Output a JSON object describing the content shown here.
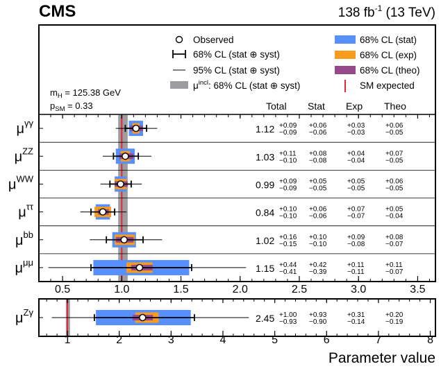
{
  "header": {
    "experiment": "CMS",
    "luminosity": "138 fb",
    "lumi_exponent": "-1",
    "energy": "(13 TeV)"
  },
  "legend": {
    "observed": "Observed",
    "ci68_total": "68% CL (stat ⊕ syst)",
    "ci95_total": "95% CL (stat ⊕ syst)",
    "incl_prefix": "μ",
    "incl_sup": "incl",
    "incl_suffix": ": 68% CL (stat ⊕ syst)",
    "stat": "68% CL (stat)",
    "exp": "68% CL (exp)",
    "theo": "68% CL (theo)",
    "sm": "SM expected"
  },
  "params": {
    "mh": "m",
    "mh_sub": "H",
    "mh_val": " = 125.38 GeV",
    "psm": "p",
    "psm_sub": "SM",
    "psm_val": " = 0.33"
  },
  "columns": {
    "total": "Total",
    "stat": "Stat",
    "exp": "Exp",
    "theo": "Theo"
  },
  "colors": {
    "stat": "#5790fc",
    "exp": "#f89c20",
    "theo": "#964a8b",
    "incl": "#9c9ca1",
    "sm": "#e42536"
  },
  "axis": {
    "xlabel": "Parameter value"
  },
  "chart_data": [
    {
      "type": "forest",
      "xlim": [
        0.3,
        3.65
      ],
      "xticks": [
        "0.5",
        "1.0",
        "1.5",
        "2.0",
        "2.5",
        "3.0",
        "3.5"
      ],
      "sm_expected": 1.0,
      "incl_band": [
        0.97,
        1.05
      ],
      "rows": [
        {
          "label": "μ",
          "sup": "γγ",
          "value": 1.12,
          "total_text": "1.12",
          "total": [
            0.09,
            0.09
          ],
          "total_up": "+0.09",
          "total_dn": "−0.09",
          "stat": [
            0.06,
            0.06
          ],
          "stat_up": "+0.06",
          "stat_dn": "−0.06",
          "exp": [
            0.03,
            0.03
          ],
          "exp_up": "+0.03",
          "exp_dn": "−0.03",
          "theo": [
            0.06,
            0.05
          ],
          "theo_up": "+0.06",
          "theo_dn": "−0.05",
          "ci95": [
            0.95,
            1.3
          ]
        },
        {
          "label": "μ",
          "sup": "ZZ",
          "value": 1.03,
          "total_text": "1.03",
          "total": [
            0.11,
            0.1
          ],
          "total_up": "+0.11",
          "total_dn": "−0.10",
          "stat": [
            0.08,
            0.08
          ],
          "stat_up": "+0.08",
          "stat_dn": "−0.08",
          "exp": [
            0.04,
            0.04
          ],
          "exp_up": "+0.04",
          "exp_dn": "−0.04",
          "theo": [
            0.07,
            0.05
          ],
          "theo_up": "+0.07",
          "theo_dn": "−0.05",
          "ci95": [
            0.84,
            1.25
          ]
        },
        {
          "label": "μ",
          "sup": "WW",
          "value": 0.99,
          "total_text": "0.99",
          "total": [
            0.09,
            0.09
          ],
          "total_up": "+0.09",
          "total_dn": "−0.09",
          "stat": [
            0.05,
            0.05
          ],
          "stat_up": "+0.05",
          "stat_dn": "−0.05",
          "exp": [
            0.05,
            0.05
          ],
          "exp_up": "+0.05",
          "exp_dn": "−0.05",
          "theo": [
            0.06,
            0.05
          ],
          "theo_up": "+0.06",
          "theo_dn": "−0.05",
          "ci95": [
            0.82,
            1.17
          ]
        },
        {
          "label": "μ",
          "sup": "ττ",
          "value": 0.84,
          "total_text": "0.84",
          "total": [
            0.1,
            0.1
          ],
          "total_up": "+0.10",
          "total_dn": "−0.10",
          "stat": [
            0.06,
            0.06
          ],
          "stat_up": "+0.06",
          "stat_dn": "−0.06",
          "exp": [
            0.07,
            0.07
          ],
          "exp_up": "+0.07",
          "exp_dn": "−0.07",
          "theo": [
            0.05,
            0.04
          ],
          "theo_up": "+0.05",
          "theo_dn": "−0.04",
          "ci95": [
            0.65,
            1.04
          ]
        },
        {
          "label": "μ",
          "sup": "bb",
          "value": 1.02,
          "total_text": "1.02",
          "total": [
            0.16,
            0.15
          ],
          "total_up": "+0.16",
          "total_dn": "−0.15",
          "stat": [
            0.1,
            0.1
          ],
          "stat_up": "+0.10",
          "stat_dn": "−0.10",
          "exp": [
            0.09,
            0.08
          ],
          "exp_up": "+0.09",
          "exp_dn": "−0.08",
          "theo": [
            0.08,
            0.07
          ],
          "theo_up": "+0.08",
          "theo_dn": "−0.07",
          "ci95": [
            0.73,
            1.34
          ]
        },
        {
          "label": "μ",
          "sup": "μμ",
          "value": 1.15,
          "total_text": "1.15",
          "total": [
            0.44,
            0.41
          ],
          "total_up": "+0.44",
          "total_dn": "−0.41",
          "stat": [
            0.42,
            0.39
          ],
          "stat_up": "+0.42",
          "stat_dn": "−0.39",
          "exp": [
            0.11,
            0.11
          ],
          "exp_up": "+0.11",
          "exp_dn": "−0.11",
          "theo": [
            0.11,
            0.07
          ],
          "theo_up": "+0.11",
          "theo_dn": "−0.07",
          "ci95": [
            0.38,
            2.05
          ]
        }
      ]
    },
    {
      "type": "forest",
      "xlim": [
        0.45,
        8.1
      ],
      "xticks": [
        "1",
        "2",
        "3",
        "4",
        "5",
        "6",
        "7",
        "8"
      ],
      "sm_expected": 1.0,
      "incl_band": [
        0.97,
        1.05
      ],
      "rows": [
        {
          "label": "μ",
          "sup": "Zγ",
          "value": 2.45,
          "total_text": "2.45",
          "total": [
            1.0,
            0.93
          ],
          "total_up": "+1.00",
          "total_dn": "−0.93",
          "stat": [
            0.93,
            0.9
          ],
          "stat_up": "+0.93",
          "stat_dn": "−0.90",
          "exp": [
            0.31,
            0.14
          ],
          "exp_up": "+0.31",
          "exp_dn": "−0.14",
          "theo": [
            0.2,
            0.19
          ],
          "theo_up": "+0.20",
          "theo_dn": "−0.19",
          "ci95": [
            0.7,
            4.5
          ]
        }
      ]
    }
  ]
}
